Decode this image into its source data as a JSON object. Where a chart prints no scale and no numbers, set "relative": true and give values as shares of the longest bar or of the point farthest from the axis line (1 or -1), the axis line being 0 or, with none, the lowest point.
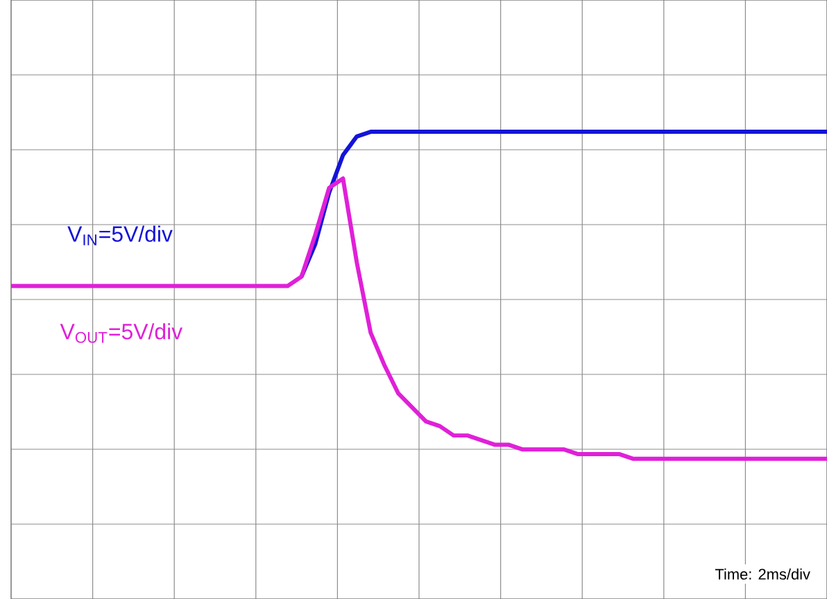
{
  "chart_data": {
    "type": "line",
    "relative": true,
    "grid": true,
    "legend": false,
    "line_style": "solid",
    "marker": "none",
    "categories": [
      null,
      null,
      null,
      null,
      null,
      null,
      null,
      null,
      null,
      null,
      null,
      null,
      null,
      null,
      null,
      null,
      null,
      null,
      null,
      null,
      null,
      null,
      null,
      null,
      null,
      null,
      null,
      null,
      null,
      null,
      null,
      null,
      null,
      null,
      null,
      null,
      null,
      null,
      null,
      null,
      null,
      null,
      null,
      null,
      null,
      null,
      null,
      null,
      null,
      null,
      null,
      null,
      null,
      null,
      null,
      null,
      null,
      null,
      null,
      null
    ],
    "series": [
      {
        "name": "V$_{IN}$=5V/div",
        "color": "#1414d8",
        "values": [
          null,
          null,
          null,
          null,
          null,
          null,
          null,
          null,
          null,
          null,
          null,
          null,
          null,
          null,
          null,
          null,
          null,
          null,
          null,
          null,
          null,
          0.69,
          0.76,
          0.87,
          0.95,
          0.99,
          1,
          1,
          1,
          1,
          1,
          1,
          1,
          1,
          1,
          1,
          1,
          1,
          1,
          1,
          1,
          1,
          1,
          1,
          1,
          1,
          1,
          1,
          1,
          1,
          1,
          1,
          1,
          1,
          1,
          1,
          1,
          1,
          1,
          1
        ]
      },
      {
        "name": "V$_{OUT}$=5V/div",
        "color": "#e020d8",
        "values": [
          0.67,
          0.67,
          0.67,
          0.67,
          0.67,
          0.67,
          0.67,
          0.67,
          0.67,
          0.67,
          0.67,
          0.67,
          0.67,
          0.67,
          0.67,
          0.67,
          0.67,
          0.67,
          0.67,
          0.67,
          0.67,
          0.69,
          0.78,
          0.88,
          0.9,
          0.72,
          0.57,
          0.5,
          0.44,
          0.41,
          0.38,
          0.37,
          0.35,
          0.35,
          0.34,
          0.33,
          0.33,
          0.32,
          0.32,
          0.32,
          0.32,
          0.31,
          0.31,
          0.31,
          0.31,
          0.3,
          0.3,
          0.3,
          0.3,
          0.3,
          0.3,
          0.3,
          0.3,
          0.3,
          0.3,
          0.3,
          0.3,
          0.3,
          0.3,
          0.3
        ]
      }
    ],
    "annotations": [
      "Time: 2ms/div"
    ]
  }
}
